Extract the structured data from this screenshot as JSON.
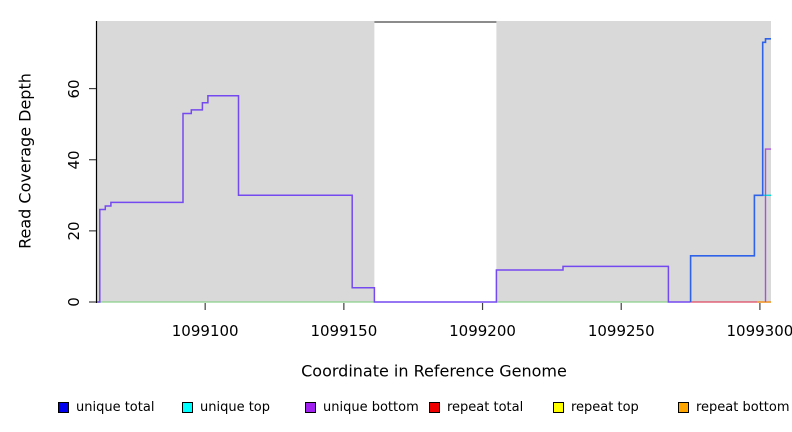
{
  "chart_data": {
    "type": "line",
    "title": "",
    "xlabel": "Coordinate in Reference Genome",
    "ylabel": "Read Coverage Depth",
    "xlim": [
      1099061,
      1099304
    ],
    "ylim": [
      0,
      79
    ],
    "xticks": [
      1099100,
      1099150,
      1099200,
      1099250,
      1099300
    ],
    "yticks": [
      0,
      20,
      40,
      60
    ],
    "grid": false,
    "plot_background": "#d9d9d9",
    "figure_background": "#ffffff",
    "axis_color": "#000000",
    "tick_color": "#404040",
    "masked_region": {
      "start": 1099161,
      "end": 1099205,
      "fill": "#ffffff",
      "top_border_color": "#8c8c8c"
    },
    "legend": [
      {
        "label": "unique total",
        "color": "#0000ee"
      },
      {
        "label": "unique top",
        "color": "#00ffff"
      },
      {
        "label": "unique bottom",
        "color": "#a020f0"
      },
      {
        "label": "repeat total",
        "color": "#ee0000"
      },
      {
        "label": "repeat top",
        "color": "#ffff00"
      },
      {
        "label": "repeat bottom",
        "color": "#ffa500"
      }
    ],
    "series": [
      {
        "name": "unique total",
        "interp": "step",
        "points": [
          [
            1099061,
            0
          ],
          [
            1099062,
            26
          ],
          [
            1099064,
            27
          ],
          [
            1099066,
            28
          ],
          [
            1099092,
            53
          ],
          [
            1099095,
            54
          ],
          [
            1099099,
            56
          ],
          [
            1099101,
            58
          ],
          [
            1099112,
            30
          ],
          [
            1099153,
            4
          ],
          [
            1099161,
            0
          ],
          [
            1099205,
            9
          ],
          [
            1099229,
            10
          ],
          [
            1099267,
            0
          ],
          [
            1099275,
            13
          ],
          [
            1099298,
            30
          ],
          [
            1099301,
            73
          ],
          [
            1099302,
            74
          ],
          [
            1099304,
            74
          ]
        ]
      },
      {
        "name": "unique top",
        "interp": "step",
        "points": [
          [
            1099061,
            0
          ],
          [
            1099300,
            30
          ],
          [
            1099304,
            30
          ]
        ]
      },
      {
        "name": "unique bottom",
        "interp": "step",
        "points": [
          [
            1099061,
            0
          ],
          [
            1099062,
            26
          ],
          [
            1099064,
            27
          ],
          [
            1099066,
            28
          ],
          [
            1099092,
            53
          ],
          [
            1099095,
            54
          ],
          [
            1099099,
            56
          ],
          [
            1099101,
            58
          ],
          [
            1099112,
            30
          ],
          [
            1099153,
            4
          ],
          [
            1099161,
            0
          ],
          [
            1099205,
            9
          ],
          [
            1099229,
            10
          ],
          [
            1099267,
            0
          ],
          [
            1099302,
            43
          ],
          [
            1099304,
            43
          ]
        ]
      },
      {
        "name": "repeat total",
        "interp": "step",
        "points": [
          [
            1099061,
            0
          ],
          [
            1099304,
            0
          ]
        ]
      },
      {
        "name": "repeat top",
        "interp": "step",
        "points": [
          [
            1099061,
            0
          ],
          [
            1099304,
            0
          ]
        ]
      },
      {
        "name": "repeat bottom",
        "interp": "step",
        "points": [
          [
            1099061,
            0
          ],
          [
            1099304,
            0
          ]
        ]
      }
    ],
    "render_segments": [
      {
        "name": "baseline-green-left",
        "color": "#8ccf8c",
        "width": 1.2,
        "points": [
          [
            1099061,
            0
          ],
          [
            1099161,
            0
          ]
        ]
      },
      {
        "name": "baseline-green-mid",
        "color": "#8ccf8c",
        "width": 1.2,
        "points": [
          [
            1099205,
            0
          ],
          [
            1099267,
            0
          ]
        ]
      },
      {
        "name": "unique-top-notch",
        "color": "#00dede",
        "width": 1.4,
        "points": [
          [
            1099300,
            30
          ],
          [
            1099304,
            30
          ]
        ]
      },
      {
        "name": "unique-coverage-curve",
        "color": "#7549f0",
        "width": 1.5,
        "points": [
          [
            1099061,
            0
          ],
          [
            1099062,
            26
          ],
          [
            1099064,
            27
          ],
          [
            1099066,
            28
          ],
          [
            1099092,
            53
          ],
          [
            1099095,
            54
          ],
          [
            1099099,
            56
          ],
          [
            1099101,
            58
          ],
          [
            1099112,
            30
          ],
          [
            1099153,
            4
          ],
          [
            1099161,
            0
          ],
          [
            1099205,
            9
          ],
          [
            1099229,
            10
          ],
          [
            1099267,
            0
          ],
          [
            1099275,
            0
          ]
        ]
      },
      {
        "name": "baseline-red-right",
        "color": "#dd4860",
        "width": 1.2,
        "points": [
          [
            1099275,
            0
          ],
          [
            1099304,
            0
          ]
        ]
      },
      {
        "name": "baseline-orange-corner",
        "color": "#f0a030",
        "width": 1.6,
        "points": [
          [
            1099299,
            0
          ],
          [
            1099304,
            0
          ]
        ]
      },
      {
        "name": "unique-total-right",
        "color": "#2e62e8",
        "width": 1.6,
        "points": [
          [
            1099275,
            0
          ],
          [
            1099275,
            13
          ],
          [
            1099298,
            30
          ],
          [
            1099301,
            73
          ],
          [
            1099302,
            74
          ],
          [
            1099304,
            74
          ]
        ]
      },
      {
        "name": "unique-bottom-right",
        "color": "#ab4fe0",
        "width": 1.4,
        "points": [
          [
            1099302,
            0
          ],
          [
            1099302,
            43
          ],
          [
            1099304,
            43
          ]
        ]
      }
    ]
  }
}
